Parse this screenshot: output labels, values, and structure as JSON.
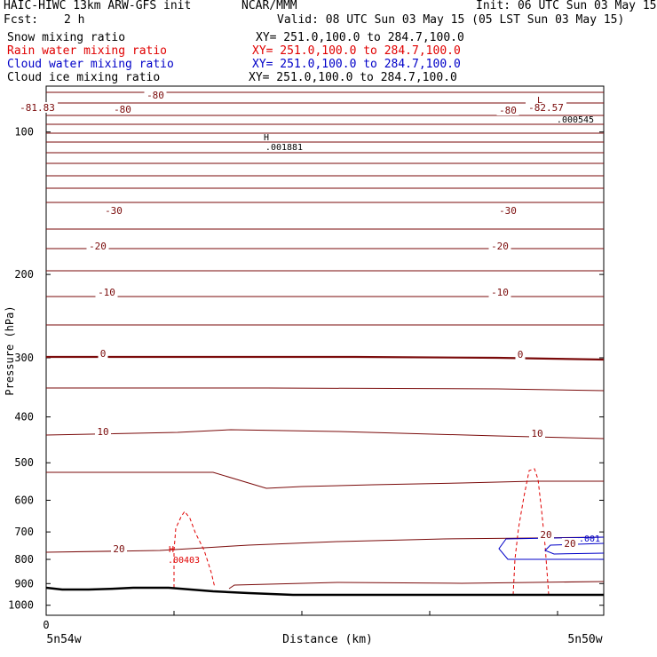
{
  "header": {
    "model_title": "HAIC-HIWC 13km ARW-GFS init",
    "org": "NCAR/MMM",
    "init": "Init: 06 UTC Sun 03 May 15",
    "fcst_label": "Fcst:",
    "fcst_value": "2 h",
    "valid": "Valid: 08 UTC Sun 03 May 15 (05 LST Sun 03 May 15)"
  },
  "legend": [
    {
      "label": "Snow mixing ratio",
      "xy": "XY= 251.0,100.0 to 284.7,100.0",
      "color": "#000000"
    },
    {
      "label": "Rain water mixing ratio",
      "xy": "XY= 251.0,100.0 to 284.7,100.0",
      "color": "#e00000"
    },
    {
      "label": "Cloud water mixing ratio",
      "xy": "XY= 251.0,100.0 to 284.7,100.0",
      "color": "#0000c8"
    },
    {
      "label": "Cloud ice mixing ratio",
      "xy": "XY= 251.0,100.0 to 284.7,100.0",
      "color": "#000000"
    }
  ],
  "colors": {
    "temperature": "#7a0a0a",
    "rain": "#e00000",
    "cloud_water": "#0000c8",
    "ground": "#000000"
  },
  "chart_data": {
    "type": "contour-cross-section",
    "ylabel": "Pressure (hPa)",
    "xlabel": "Distance (km)",
    "y_scale": "log",
    "ylim": [
      1050,
      80
    ],
    "y_ticks": [
      100,
      200,
      300,
      400,
      500,
      600,
      700,
      800,
      900,
      1000
    ],
    "x_ticks": [
      "0"
    ],
    "x_left_label": "5n54w",
    "x_right_label": "5n50w",
    "temperature_labels": [
      "-80",
      "-80",
      "-80",
      "-82.57",
      "-81.83",
      "-30",
      "-30",
      "-20",
      "-20",
      "-10",
      "-10",
      "0",
      "0",
      "10",
      "10",
      "20",
      "20",
      "20"
    ],
    "field_annotations": [
      {
        "type": "H",
        "value": ".001881",
        "series": "Snow mixing ratio"
      },
      {
        "type": "L",
        "value": ".000545",
        "series": "Snow mixing ratio"
      },
      {
        "type": "H",
        "value": ".00403",
        "series": "Rain water mixing ratio"
      },
      {
        "type": "contour",
        "value": ".001",
        "series": "Cloud water mixing ratio"
      }
    ]
  }
}
